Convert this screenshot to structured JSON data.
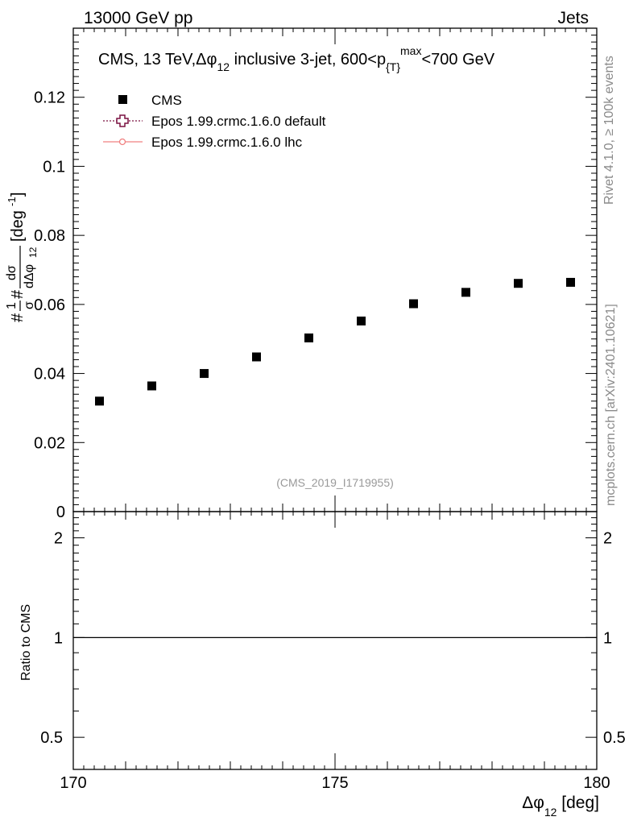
{
  "header": {
    "left": "13000 GeV pp",
    "right": "Jets"
  },
  "side_labels": {
    "rivet": "Rivet 4.1.0, ≥ 100k events",
    "mcplots": "mcplots.cern.ch [arXiv:2401.10621]"
  },
  "watermark": "(CMS_2019_I1719955)",
  "chart_data": {
    "type": "scatter",
    "title": "CMS, 13 TeV,Δφ₁₂ inclusive 3-jet, 600<p{T}max<700 GeV",
    "xlabel": "Δφ12 [deg]",
    "ylabel": "#1/σ #dσ/dΔφ12 [deg-1]",
    "xlim": [
      170,
      180
    ],
    "ylim": [
      0,
      0.14
    ],
    "x_ticks": [
      "170",
      "175",
      "180"
    ],
    "y_ticks": [
      "0",
      "0.02",
      "0.04",
      "0.06",
      "0.08",
      "0.1",
      "0.12"
    ],
    "legend": [
      {
        "name": "CMS",
        "color": "#000000",
        "marker": "square"
      },
      {
        "name": "Epos 1.99.crmc.1.6.0 default",
        "color": "#7a1040",
        "marker": "open-cross",
        "line": "dotted"
      },
      {
        "name": "Epos 1.99.crmc.1.6.0 lhc",
        "color": "#f08080",
        "marker": "circle",
        "line": "solid"
      }
    ],
    "series": [
      {
        "name": "CMS",
        "x": [
          170.5,
          171.5,
          172.5,
          173.5,
          174.5,
          175.5,
          176.5,
          177.5,
          178.5,
          179.5
        ],
        "values": [
          0.032,
          0.0364,
          0.04,
          0.0448,
          0.0503,
          0.0552,
          0.0602,
          0.0635,
          0.0661,
          0.0664
        ]
      }
    ],
    "ratio_panel": {
      "ylabel": "Ratio to CMS",
      "ylim": [
        0.4,
        2.4
      ],
      "y_ticks": [
        "0.5",
        "1",
        "2"
      ],
      "reference": 1
    }
  }
}
